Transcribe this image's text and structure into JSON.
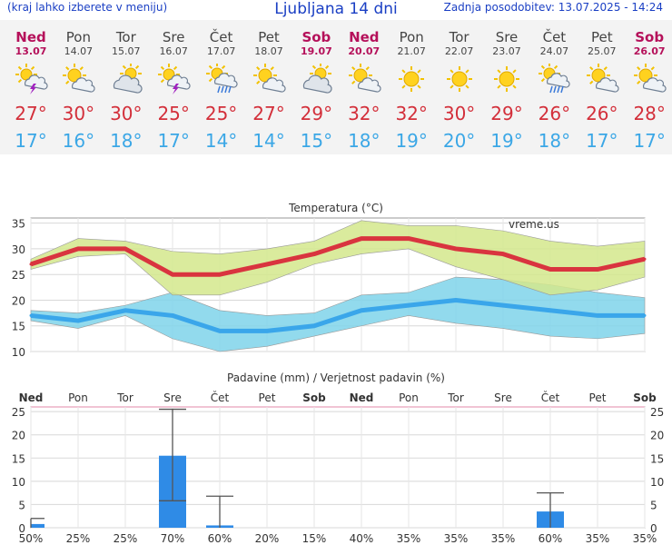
{
  "header": {
    "left_note": "(kraj lahko izberete v meniju)",
    "title": "Ljubljana 14 dni",
    "updated": "Zadnja posodobitev: 13.07.2025 - 14:24"
  },
  "days": [
    {
      "name": "Ned",
      "date": "13.07",
      "icon": "thunderstorm-icon",
      "tmax": "27°",
      "tmin": "17°",
      "weekend": true
    },
    {
      "name": "Pon",
      "date": "14.07",
      "icon": "partly-cloudy-icon",
      "tmax": "30°",
      "tmin": "16°",
      "weekend": false
    },
    {
      "name": "Tor",
      "date": "15.07",
      "icon": "cloudy-sun-icon",
      "tmax": "30°",
      "tmin": "18°",
      "weekend": false
    },
    {
      "name": "Sre",
      "date": "16.07",
      "icon": "thunderstorm-icon",
      "tmax": "25°",
      "tmin": "17°",
      "weekend": false
    },
    {
      "name": "Čet",
      "date": "17.07",
      "icon": "rain-shower-icon",
      "tmax": "25°",
      "tmin": "14°",
      "weekend": false
    },
    {
      "name": "Pet",
      "date": "18.07",
      "icon": "partly-cloudy-icon",
      "tmax": "27°",
      "tmin": "14°",
      "weekend": false
    },
    {
      "name": "Sob",
      "date": "19.07",
      "icon": "cloudy-sun-icon",
      "tmax": "29°",
      "tmin": "15°",
      "weekend": true
    },
    {
      "name": "Ned",
      "date": "20.07",
      "icon": "partly-cloudy-icon",
      "tmax": "32°",
      "tmin": "18°",
      "weekend": true
    },
    {
      "name": "Pon",
      "date": "21.07",
      "icon": "sun-icon",
      "tmax": "32°",
      "tmin": "19°",
      "weekend": false
    },
    {
      "name": "Tor",
      "date": "22.07",
      "icon": "sun-icon",
      "tmax": "30°",
      "tmin": "20°",
      "weekend": false
    },
    {
      "name": "Sre",
      "date": "23.07",
      "icon": "sun-icon",
      "tmax": "29°",
      "tmin": "19°",
      "weekend": false
    },
    {
      "name": "Čet",
      "date": "24.07",
      "icon": "rain-shower-icon",
      "tmax": "26°",
      "tmin": "18°",
      "weekend": false
    },
    {
      "name": "Pet",
      "date": "25.07",
      "icon": "partly-cloudy-icon",
      "tmax": "26°",
      "tmin": "17°",
      "weekend": false
    },
    {
      "name": "Sob",
      "date": "26.07",
      "icon": "partly-cloudy-icon",
      "tmax": "28°",
      "tmin": "17°",
      "weekend": true
    }
  ],
  "colors": {
    "max_line": "#d9343f",
    "min_line": "#3aa6ea",
    "max_band": "#d4e88c",
    "min_band": "#7fd3ea",
    "bar": "#2f8be6",
    "weekend": "#b5105a",
    "axis": "#555555",
    "prob_text": "#2c94e0",
    "prob_text_light": "#8fd0f0"
  },
  "chart_data": [
    {
      "type": "line",
      "title": "Temperatura (°C)",
      "watermark": "vreme.us",
      "x": [
        "13.07",
        "14.07",
        "15.07",
        "16.07",
        "17.07",
        "18.07",
        "19.07",
        "20.07",
        "21.07",
        "22.07",
        "23.07",
        "24.07",
        "25.07",
        "26.07"
      ],
      "ylim": [
        10,
        36
      ],
      "yticks": [
        10,
        15,
        20,
        25,
        30,
        35
      ],
      "grid": true,
      "series": [
        {
          "role": "max",
          "values": [
            27,
            30,
            30,
            25,
            25,
            27,
            29,
            32,
            32,
            30,
            29,
            26,
            26,
            28
          ]
        },
        {
          "role": "max-band-upper",
          "values": [
            28,
            32,
            31.5,
            29.5,
            29,
            30,
            31.5,
            35.5,
            34.5,
            34.5,
            33.5,
            31.5,
            30.5,
            31.5
          ]
        },
        {
          "role": "max-band-lower",
          "values": [
            26,
            28.5,
            29,
            21,
            21,
            23.5,
            27,
            29,
            30,
            26.5,
            24,
            21,
            22,
            24.5
          ]
        },
        {
          "role": "min",
          "values": [
            17,
            16,
            18,
            17,
            14,
            14,
            15,
            18,
            19,
            20,
            19,
            18,
            17,
            17
          ]
        },
        {
          "role": "min-band-upper",
          "values": [
            18,
            17.5,
            19,
            21.5,
            18,
            17,
            17.5,
            21,
            21.5,
            24.5,
            24,
            23,
            21.5,
            20.5
          ]
        },
        {
          "role": "min-band-lower",
          "values": [
            16,
            14.5,
            17,
            12.5,
            10,
            11,
            13,
            15,
            17,
            15.5,
            14.5,
            13,
            12.5,
            13.5
          ]
        }
      ]
    },
    {
      "type": "bar",
      "title": "Padavine (mm) / Verjetnost padavin (%)",
      "categories": [
        "Ned",
        "Pon",
        "Tor",
        "Sre",
        "Čet",
        "Pet",
        "Sob",
        "Ned",
        "Pon",
        "Tor",
        "Sre",
        "Čet",
        "Pet",
        "Sob"
      ],
      "weekend": [
        true,
        false,
        false,
        false,
        false,
        false,
        true,
        true,
        false,
        false,
        false,
        false,
        false,
        true
      ],
      "values": [
        0.8,
        0,
        0,
        15.5,
        0.5,
        0,
        0,
        0,
        0,
        0,
        0,
        3.5,
        0,
        0
      ],
      "error_high": [
        2,
        null,
        null,
        25.5,
        6.8,
        null,
        null,
        null,
        null,
        null,
        null,
        7.5,
        null,
        null
      ],
      "error_low": [
        0,
        null,
        null,
        5.8,
        0,
        null,
        null,
        null,
        null,
        null,
        null,
        0,
        null,
        null
      ],
      "probability": [
        "50%",
        "25%",
        "25%",
        "70%",
        "60%",
        "20%",
        "15%",
        "40%",
        "35%",
        "35%",
        "35%",
        "60%",
        "35%",
        "35%"
      ],
      "probability_light": [
        false,
        false,
        false,
        false,
        false,
        true,
        true,
        false,
        false,
        false,
        false,
        false,
        false,
        false
      ],
      "ylim": [
        0,
        26
      ],
      "yticks": [
        0,
        5,
        10,
        15,
        20,
        25
      ],
      "grid": true
    }
  ]
}
